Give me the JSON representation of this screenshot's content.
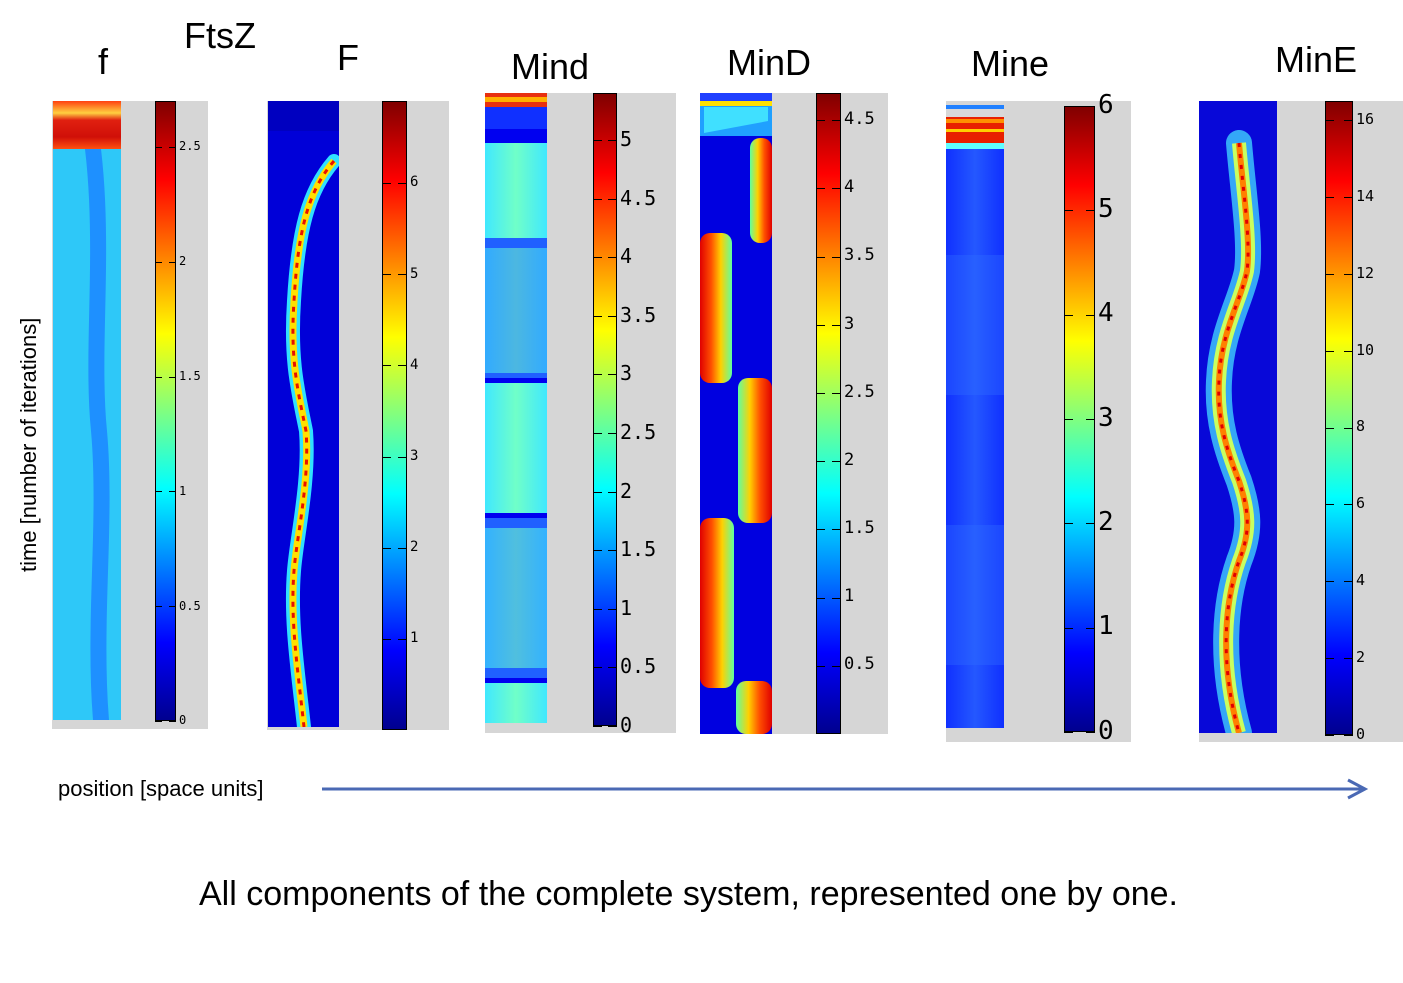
{
  "group_label": "FtsZ",
  "y_axis_label": "time [number of iterations]",
  "x_axis_label": "position [space units]",
  "caption": "All components of the complete system, represented one by one.",
  "colormap": [
    "#00008f",
    "#0000ff",
    "#0080ff",
    "#00ffff",
    "#80ff80",
    "#ffff00",
    "#ff8000",
    "#ff0000",
    "#800000"
  ],
  "chart_data": [
    {
      "type": "heatmap",
      "title": "f",
      "colorbar": {
        "min": 0,
        "max": 2.7,
        "ticks": [
          "0",
          "0.5",
          "1",
          "1.5",
          "2",
          "2.5"
        ]
      }
    },
    {
      "type": "heatmap",
      "title": "F",
      "colorbar": {
        "min": 0,
        "max": 6.9,
        "ticks": [
          "1",
          "2",
          "3",
          "4",
          "5",
          "6"
        ]
      }
    },
    {
      "type": "heatmap",
      "title": "Mind",
      "colorbar": {
        "min": 0,
        "max": 5.4,
        "ticks": [
          "0",
          "0.5",
          "1",
          "1.5",
          "2",
          "2.5",
          "3",
          "3.5",
          "4",
          "4.5",
          "5"
        ]
      }
    },
    {
      "type": "heatmap",
      "title": "MinD",
      "colorbar": {
        "min": 0,
        "max": 4.7,
        "ticks": [
          "0.5",
          "1",
          "1.5",
          "2",
          "2.5",
          "3",
          "3.5",
          "4",
          "4.5"
        ]
      }
    },
    {
      "type": "heatmap",
      "title": "Mine",
      "colorbar": {
        "min": 0,
        "max": 6,
        "ticks": [
          "0",
          "1",
          "2",
          "3",
          "4",
          "5",
          "6"
        ]
      }
    },
    {
      "type": "heatmap",
      "title": "MinE",
      "colorbar": {
        "min": 0,
        "max": 16.5,
        "ticks": [
          "0",
          "2",
          "4",
          "6",
          "8",
          "10",
          "12",
          "14",
          "16"
        ]
      }
    }
  ]
}
